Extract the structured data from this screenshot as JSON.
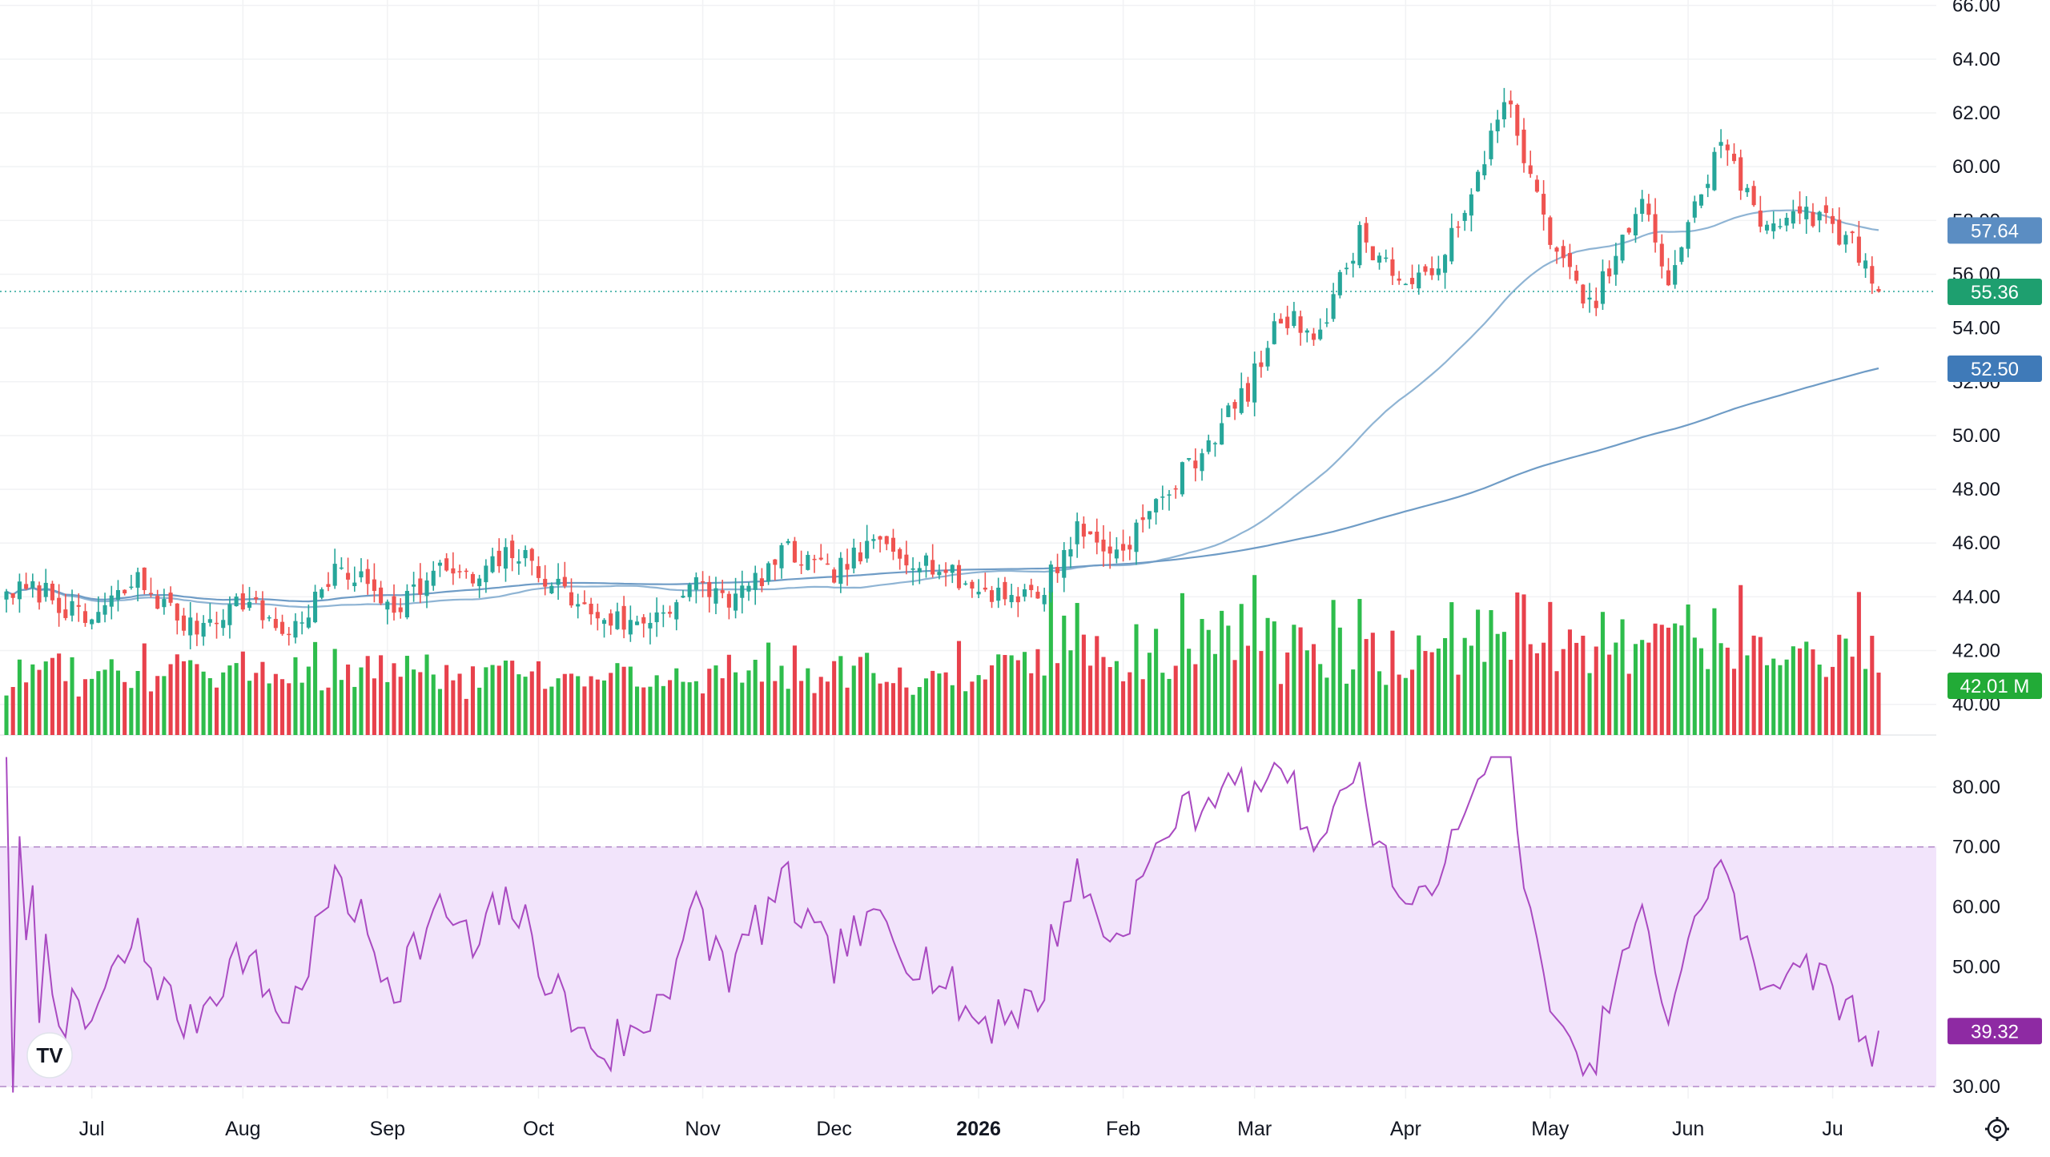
{
  "chart_data": {
    "type": "candlestick",
    "price_axis": {
      "ticks": [
        "40.00",
        "42.00",
        "44.00",
        "46.00",
        "48.00",
        "50.00",
        "52.00",
        "54.00",
        "56.00",
        "58.00",
        "60.00",
        "62.00",
        "64.00",
        "66.00"
      ],
      "tick_values": [
        40,
        42,
        44,
        46,
        48,
        50,
        52,
        54,
        56,
        58,
        60,
        62,
        64,
        66
      ],
      "ylim": [
        38.8,
        66.2
      ]
    },
    "rsi_axis": {
      "ticks": [
        "30.00",
        "40.00",
        "50.00",
        "60.00",
        "70.00",
        "80.00"
      ],
      "tick_values": [
        30,
        40,
        50,
        60,
        70,
        80
      ],
      "ylim": [
        28,
        86
      ],
      "band": [
        30,
        70
      ]
    },
    "x_axis": {
      "labels": [
        {
          "text": "Jul",
          "index": 13,
          "bold": false
        },
        {
          "text": "Aug",
          "index": 36,
          "bold": false
        },
        {
          "text": "Sep",
          "index": 58,
          "bold": false
        },
        {
          "text": "Oct",
          "index": 81,
          "bold": false
        },
        {
          "text": "Nov",
          "index": 106,
          "bold": false
        },
        {
          "text": "Dec",
          "index": 126,
          "bold": false
        },
        {
          "text": "2026",
          "index": 148,
          "bold": true
        },
        {
          "text": "Feb",
          "index": 170,
          "bold": false
        },
        {
          "text": "Mar",
          "index": 190,
          "bold": false
        },
        {
          "text": "Apr",
          "index": 213,
          "bold": false
        },
        {
          "text": "May",
          "index": 235,
          "bold": false
        },
        {
          "text": "Jun",
          "index": 256,
          "bold": false
        },
        {
          "text": "Ju",
          "index": 278,
          "bold": false
        }
      ]
    },
    "price_labels": {
      "ma_fast": {
        "text": "57.64",
        "value": 57.64,
        "color": "#5b8dc2"
      },
      "last": {
        "text": "55.36",
        "value": 55.36,
        "color": "#1e9f6f"
      },
      "ma_slow": {
        "text": "52.50",
        "value": 52.5,
        "color": "#3f7ab8"
      },
      "volume": {
        "text": "42.01 M",
        "color": "#22ab37"
      },
      "rsi": {
        "text": "39.32",
        "value": 39.32,
        "color": "#8e2aa3"
      }
    },
    "colors": {
      "up": "#26a69a",
      "down": "#ef5350",
      "up_volume": "#2ebd4c",
      "down_volume": "#e8414c",
      "ma_line": "#8fb4d4",
      "rsi_line": "#a94ac1",
      "rsi_band": "#f2e4fb",
      "grid": "#f1f2f4"
    },
    "segments": [
      {
        "n": 6,
        "c": 44.2
      },
      {
        "n": 6,
        "c": 43.0
      },
      {
        "n": 8,
        "c": 44.6
      },
      {
        "n": 8,
        "c": 42.8
      },
      {
        "n": 8,
        "c": 43.9
      },
      {
        "n": 7,
        "c": 42.6
      },
      {
        "n": 8,
        "c": 45.1
      },
      {
        "n": 8,
        "c": 43.7
      },
      {
        "n": 8,
        "c": 45.1
      },
      {
        "n": 4,
        "c": 44.5
      },
      {
        "n": 6,
        "c": 45.7
      },
      {
        "n": 6,
        "c": 44.6
      },
      {
        "n": 5,
        "c": 43.5
      },
      {
        "n": 8,
        "c": 42.9
      },
      {
        "n": 9,
        "c": 44.4
      },
      {
        "n": 6,
        "c": 43.9
      },
      {
        "n": 8,
        "c": 45.7
      },
      {
        "n": 6,
        "c": 44.8
      },
      {
        "n": 8,
        "c": 46.0
      },
      {
        "n": 8,
        "c": 45.2
      },
      {
        "n": 6,
        "c": 44.3
      },
      {
        "n": 10,
        "c": 44.0
      },
      {
        "n": 6,
        "c": 46.5
      },
      {
        "n": 6,
        "c": 45.6
      },
      {
        "n": 6,
        "c": 47.4
      },
      {
        "n": 8,
        "c": 49.8
      },
      {
        "n": 6,
        "c": 51.7
      },
      {
        "n": 5,
        "c": 54.4
      },
      {
        "n": 6,
        "c": 53.9
      },
      {
        "n": 6,
        "c": 57.5
      },
      {
        "n": 8,
        "c": 55.3
      },
      {
        "n": 8,
        "c": 58.0
      },
      {
        "n": 6,
        "c": 62.8
      },
      {
        "n": 4,
        "c": 59.4
      },
      {
        "n": 5,
        "c": 56.3
      },
      {
        "n": 4,
        "c": 54.7
      },
      {
        "n": 8,
        "c": 58.6
      },
      {
        "n": 4,
        "c": 55.8
      },
      {
        "n": 8,
        "c": 61.0
      },
      {
        "n": 6,
        "c": 57.8
      },
      {
        "n": 6,
        "c": 58.5
      },
      {
        "n": 8,
        "c": 57.2
      },
      {
        "n": 4,
        "c": 55.3
      }
    ],
    "seed": 7,
    "last_close": 55.36,
    "rsi_last": 39.32
  },
  "ui": {
    "logo_text": "TV",
    "settings_icon": "gear-icon"
  }
}
